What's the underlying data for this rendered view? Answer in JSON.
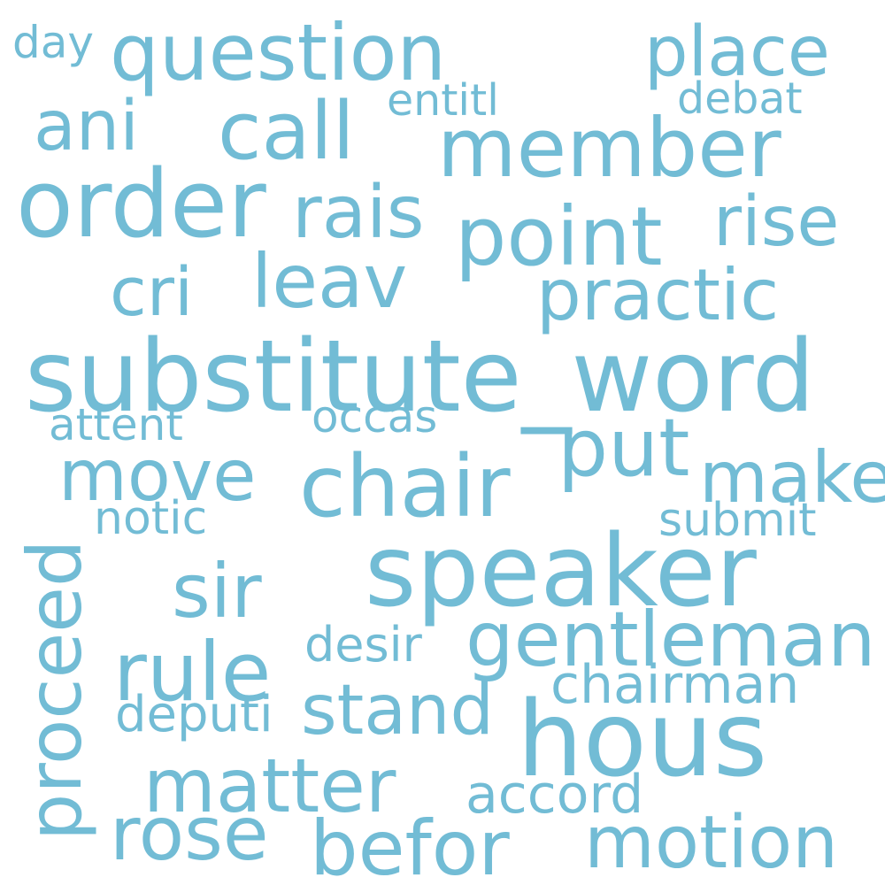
{
  "color": "#72bcd5",
  "words": [
    "day",
    "question",
    "place",
    "entitl",
    "debat",
    "ani",
    "call",
    "member",
    "order",
    "rais",
    "point",
    "rise",
    "cri",
    "leav",
    "practic",
    "substitute_word",
    "attent",
    "occas",
    "put",
    "move",
    "chair",
    "make",
    "notic",
    "submit",
    "proceed",
    "speaker",
    "sir",
    "gentleman",
    "desir",
    "rule",
    "chairman",
    "deputi",
    "stand",
    "hous",
    "matter",
    "accord",
    "rose",
    "befor",
    "motion"
  ]
}
